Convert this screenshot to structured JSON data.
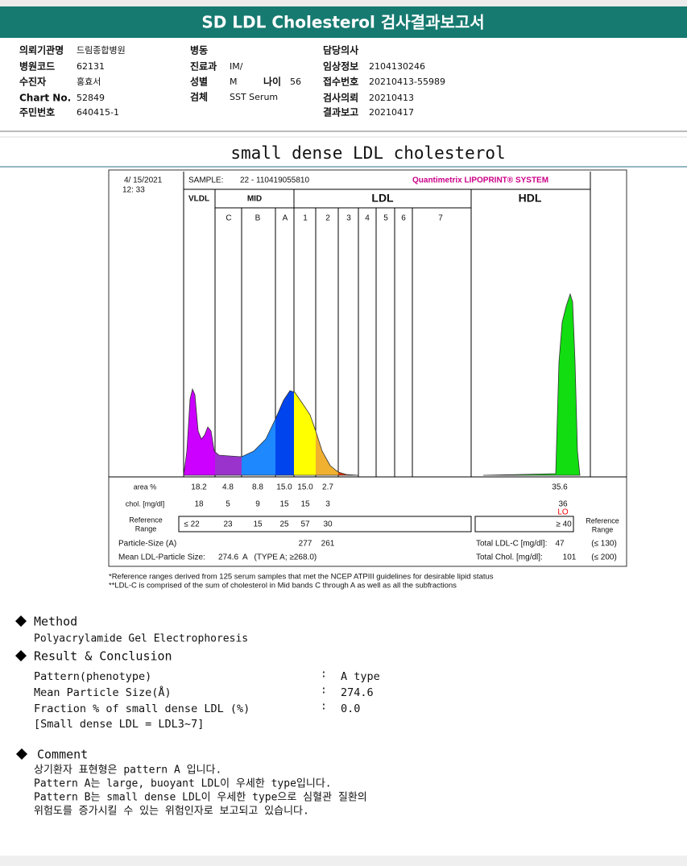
{
  "header": {
    "title": "SD LDL Cholesterol 검사결과보고서"
  },
  "info": {
    "columns": [
      [
        {
          "label": "의뢰기관명",
          "value": "드림종합병원"
        },
        {
          "label": "병원코드",
          "value": "62131"
        },
        {
          "label": "수진자",
          "value": "홍효서"
        },
        {
          "label": "Chart No.",
          "value": "52849"
        },
        {
          "label": "주민번호",
          "value": "640415-1"
        }
      ],
      [
        {
          "label": "병동"
        },
        {
          "label": "진료과",
          "value": "IM/"
        },
        {
          "label": "성별",
          "value": "M"
        },
        {
          "label": "검체",
          "value": "SST Serum"
        }
      ],
      [
        {
          "label": "담당의사"
        },
        {
          "label": "임상정보",
          "value": "2104130246"
        },
        {
          "label": "접수번호",
          "value": "20210413-55989"
        },
        {
          "label": "검사의뢰",
          "value": "20210413"
        },
        {
          "label": "결과보고",
          "value": "20210417"
        }
      ]
    ],
    "age": {
      "label": "나이",
      "value": "56"
    }
  },
  "subtitle": "small dense LDL cholesterol",
  "chart": {
    "date": "4/ 15/2021",
    "time": "12: 33",
    "sample_label": "SAMPLE:",
    "sample": "22 - 110419055810",
    "brand": "Quantimetrix LIPOPRINT® SYSTEM",
    "groups": [
      "VLDL",
      "MID",
      "LDL",
      "HDL"
    ],
    "bands": [
      "C",
      "B",
      "A",
      "1",
      "2",
      "3",
      "4",
      "5",
      "6",
      "7"
    ],
    "area": {
      "label": "area %",
      "values": [
        "18.2",
        "4.8",
        "8.8",
        "15.0",
        "15.0",
        "2.7"
      ],
      "hdl": "35.6"
    },
    "chol": {
      "label": "chol. [mg/dl]",
      "values": [
        "18",
        "5",
        "9",
        "15",
        "15",
        "3"
      ],
      "hdl": "36",
      "flag": "LO"
    },
    "reference": {
      "label": [
        "Reference",
        "Range"
      ],
      "values": [
        "≤ 22",
        "23",
        "15",
        "25",
        "57",
        "30"
      ],
      "hdl": "≥ 40"
    },
    "particle_size": {
      "label": "Particle-Size (A)",
      "values": [
        "277",
        "261"
      ]
    },
    "mean_size": {
      "label": "Mean LDL-Particle Size:",
      "value": "274.6  A   (TYPE A; ≥268.0)"
    },
    "total_ldl": {
      "label": "Total LDL-C [mg/dl]:",
      "value": "47",
      "range": "(≤ 130)"
    },
    "total_chol": {
      "label": "Total Chol. [mg/dl]:",
      "value": "101",
      "range": "(≤ 200)"
    }
  },
  "footnotes": [
    "*Reference ranges derived from 125 serum samples that met the NCEP ATPIII guidelines for desirable lipid status",
    "**LDL-C is comprised of the sum of cholesterol in Mid bands C through A as well as all the subfractions"
  ],
  "method": {
    "heading": "Method",
    "text": "Polyacrylamide Gel Electrophoresis"
  },
  "result": {
    "heading": "Result & Conclusion",
    "separator": ":",
    "rows": [
      {
        "label": "Pattern(phenotype)",
        "value": "A type"
      },
      {
        "label": "Mean Particle Size(Å)",
        "value": "274.6"
      },
      {
        "label": "Fraction % of small dense LDL (%)",
        "value": "0.0"
      }
    ],
    "note": "[Small dense LDL = LDL3~7]"
  },
  "comment": {
    "heading": "Comment",
    "lines": [
      "상기환자 표현형은 pattern A 입니다.",
      "Pattern A는 large, buoyant LDL이 우세한 type입니다.",
      "Pattern B는 small dense LDL이 우세한 type으로 심혈관 질환의",
      "위험도를 증가시킬 수 있는 위험인자로 보고되고 있습니다."
    ]
  }
}
